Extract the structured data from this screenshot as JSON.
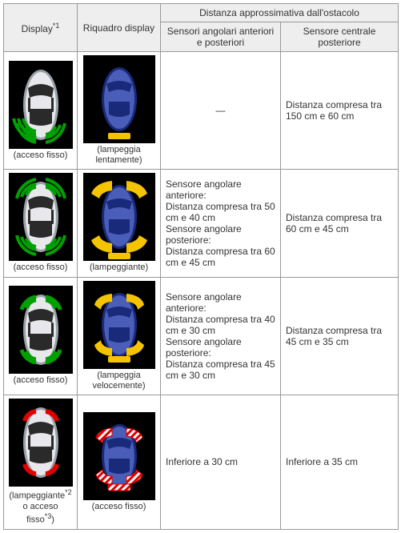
{
  "header": {
    "display": "Display",
    "display_sup": "*1",
    "panel": "Riquadro display",
    "group": "Distanza approssimativa dall'ostacolo",
    "corner": "Sensori angolari anteriori e posteriori",
    "center": "Sensore centrale posteriore"
  },
  "captions": {
    "steady": "(acceso fisso)",
    "slow": "(lampeggia lentamente)",
    "blinking": "(lampeggiante)",
    "fast": "(lampeggia velocemente)",
    "blink_or_steady_1": "(lampeggiante",
    "blink_or_steady_sup1": "*2",
    "blink_or_steady_2": "o acceso fisso",
    "blink_or_steady_sup2": "*3",
    "blink_or_steady_paren": ")"
  },
  "rows": [
    {
      "corner": "—",
      "center": "Distanza compresa tra 150 cm e 60 cm"
    },
    {
      "corner": "Sensore angolare anteriore:\nDistanza compresa tra 50 cm e 40 cm\nSensore angolare posteriore:\nDistanza compresa tra 60 cm e 45 cm",
      "center": "Distanza compresa tra 60 cm e 45 cm"
    },
    {
      "corner": "Sensore angolare anteriore:\nDistanza compresa tra 40 cm e 30 cm\nSensore angolare posteriore:\nDistanza compresa tra 45 cm e 30 cm",
      "center": "Distanza compresa tra 45 cm e 35 cm"
    },
    {
      "corner": "Inferiore a 30 cm",
      "center": "Inferiore a 35 cm"
    }
  ],
  "colors": {
    "car_silver_light": "#e8e8ec",
    "car_silver_dark": "#9aa0a8",
    "car_blue_light": "#4a5db8",
    "car_blue_dark": "#1a2a7a",
    "green": "#00a000",
    "yellow": "#f4c400",
    "red": "#e00000",
    "black": "#000000",
    "window": "#2a2a2a"
  }
}
